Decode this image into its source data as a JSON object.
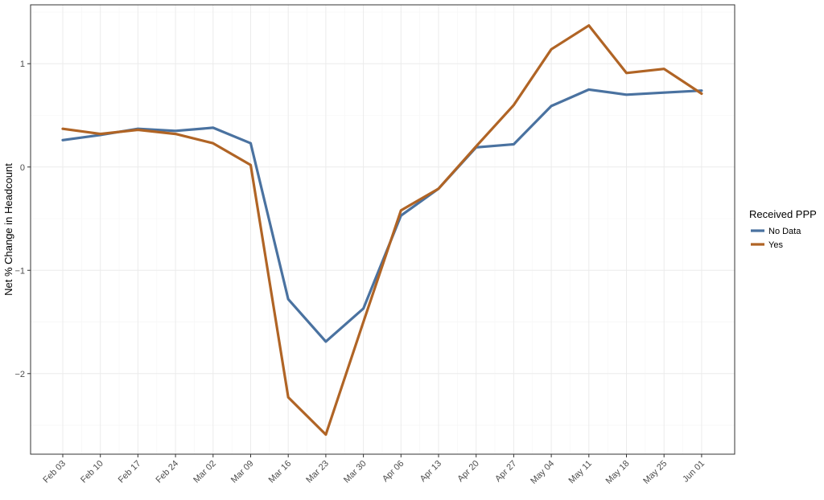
{
  "chart_data": {
    "type": "line",
    "title": "",
    "xlabel": "",
    "ylabel": "Net % Change in Headcount",
    "categories": [
      "Feb 03",
      "Feb 10",
      "Feb 17",
      "Feb 24",
      "Mar 02",
      "Mar 09",
      "Mar 16",
      "Mar 23",
      "Mar 30",
      "Apr 06",
      "Apr 13",
      "Apr 20",
      "Apr 27",
      "May 04",
      "May 11",
      "May 18",
      "May 25",
      "Jun 01"
    ],
    "yticks": [
      1,
      0,
      -1,
      -2
    ],
    "ytick_labels": [
      "1",
      "0",
      "−1",
      "−2"
    ],
    "ylim": [
      -2.78,
      1.57
    ],
    "grid": true,
    "legend": {
      "title": "Received PPP",
      "position": "right"
    },
    "series": [
      {
        "name": "No Data",
        "color": "#4a72a0",
        "values": [
          0.26,
          0.31,
          0.37,
          0.35,
          0.38,
          0.23,
          -1.28,
          -1.69,
          -1.37,
          -0.47,
          -0.21,
          0.19,
          0.22,
          0.59,
          0.75,
          0.7,
          0.72,
          0.74
        ]
      },
      {
        "name": "Yes",
        "color": "#b06425",
        "values": [
          0.37,
          0.32,
          0.36,
          0.32,
          0.23,
          0.02,
          -2.23,
          -2.59,
          -1.5,
          -0.42,
          -0.21,
          0.2,
          0.6,
          1.14,
          1.37,
          0.91,
          0.95,
          0.71
        ]
      }
    ]
  }
}
